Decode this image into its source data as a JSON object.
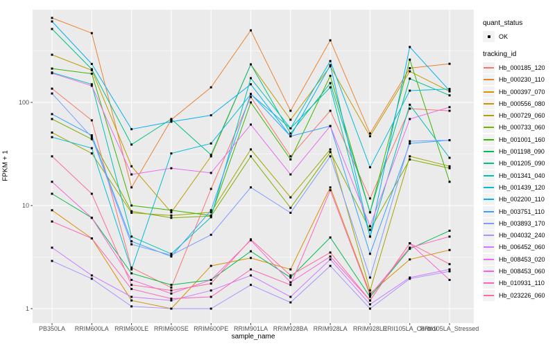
{
  "page": {
    "background": "#FFFFFF"
  },
  "panel": {
    "background": "#EBEBEB",
    "gridline_color": "#FFFFFF",
    "tick_color": "#333333",
    "axis_text_color": "#4D4D4D",
    "marker_color": "#000000",
    "legend_key_background": "#F2F2F2"
  },
  "chart_data": {
    "type": "line",
    "title": "",
    "xlabel": "sample_name",
    "ylabel": "FPKM + 1",
    "x_categories": [
      "PB350LA",
      "RRIM600LA",
      "RRIM600LE",
      "RRIM600SE",
      "RRIM600PE",
      "RRIM901LA",
      "RRIM928BA",
      "RRIM928LA",
      "RRIM928LE",
      "RRII105LA_Control",
      "RRII105LA_Stressed"
    ],
    "y_axis": {
      "scale": "log10",
      "ticks": [
        1,
        10,
        100
      ],
      "tick_labels": [
        "1",
        "10",
        "100"
      ],
      "minor_ticks": [
        3.162,
        31.62,
        316.2
      ],
      "range": [
        0.72,
        794
      ]
    },
    "grid": true,
    "legend_position": "right",
    "legend": {
      "quant_status": {
        "title": "quant_status",
        "items": [
          {
            "label": "OK",
            "marker": "black-point"
          }
        ]
      },
      "tracking_id": {
        "title": "tracking_id"
      }
    },
    "series": [
      {
        "name": "Hb_000185_120",
        "color": "#F8766D",
        "values": [
          136,
          67,
          2.5,
          1.6,
          14.5,
          113,
          30,
          83,
          11.7,
          87,
          83
        ]
      },
      {
        "name": "Hb_000230_110",
        "color": "#EA8331",
        "values": [
          660,
          470,
          15,
          68,
          140,
          500,
          83,
          400,
          50,
          215,
          237
        ]
      },
      {
        "name": "Hb_000397_070",
        "color": "#D89000",
        "values": [
          9,
          4.8,
          1.2,
          1.0,
          2.6,
          3.1,
          2.4,
          15,
          1.4,
          3.0,
          3.7
        ]
      },
      {
        "name": "Hb_000556_080",
        "color": "#C09B00",
        "values": [
          290,
          205,
          24,
          8.6,
          30,
          234,
          68,
          224,
          47,
          200,
          128
        ]
      },
      {
        "name": "Hb_000729_060",
        "color": "#A3A500",
        "values": [
          51,
          32,
          8.5,
          8.0,
          8.6,
          35,
          12,
          35,
          1.5,
          30,
          24
        ]
      },
      {
        "name": "Hb_000733_060",
        "color": "#7CAE00",
        "values": [
          69,
          44,
          8.8,
          7.6,
          7.9,
          30,
          9.5,
          33,
          5.8,
          28,
          23
        ]
      },
      {
        "name": "Hb_001001_160",
        "color": "#39B600",
        "values": [
          213,
          190,
          10,
          9.0,
          8.0,
          100,
          28,
          181,
          8.6,
          260,
          17
        ]
      },
      {
        "name": "Hb_001198_090",
        "color": "#00BB4E",
        "values": [
          13,
          7.6,
          2.2,
          1.7,
          1.9,
          3.6,
          2.0,
          4.9,
          1.3,
          3.8,
          5.7
        ]
      },
      {
        "name": "Hb_001205_090",
        "color": "#00C087",
        "values": [
          515,
          210,
          39,
          69,
          31,
          234,
          50,
          154,
          8.6,
          170,
          117
        ]
      },
      {
        "name": "Hb_001341_040",
        "color": "#00C0B2",
        "values": [
          195,
          150,
          5.0,
          3.4,
          7.7,
          172,
          56,
          140,
          5.0,
          95,
          29
        ]
      },
      {
        "name": "Hb_001439_120",
        "color": "#00BCD8",
        "values": [
          46,
          36,
          2.4,
          32,
          40,
          120,
          56,
          252,
          23.5,
          130,
          135
        ]
      },
      {
        "name": "Hb_002200_110",
        "color": "#00B0F6",
        "values": [
          610,
          236,
          55,
          65,
          75,
          150,
          47,
          230,
          5.0,
          345,
          130
        ]
      },
      {
        "name": "Hb_003751_110",
        "color": "#35A2FF",
        "values": [
          77,
          48,
          4.5,
          3.2,
          9.0,
          121,
          47,
          59,
          3.4,
          40,
          43
        ]
      },
      {
        "name": "Hb_003893_170",
        "color": "#7C9DFF",
        "values": [
          122,
          46,
          4.2,
          3.3,
          5.2,
          15,
          8.5,
          30,
          2.0,
          42,
          43
        ]
      },
      {
        "name": "Hb_004032_240",
        "color": "#A992FF",
        "values": [
          2.9,
          1.95,
          1.05,
          1.0,
          1.0,
          1.7,
          1.15,
          2.6,
          1.0,
          1.95,
          2.3
        ]
      },
      {
        "name": "Hb_006452_060",
        "color": "#CD79FF",
        "values": [
          3.9,
          2.1,
          1.3,
          1.2,
          1.5,
          2.1,
          1.3,
          3.0,
          1.1,
          2.0,
          2.4
        ]
      },
      {
        "name": "Hb_008453_020",
        "color": "#E76BF3",
        "values": [
          192,
          145,
          20,
          23,
          20.7,
          61,
          20,
          59,
          6.3,
          69,
          90
        ]
      },
      {
        "name": "Hb_008453_060",
        "color": "#FA62DB",
        "values": [
          17,
          7.6,
          1.9,
          1.4,
          1.9,
          4.6,
          1.8,
          3.2,
          1.2,
          4.3,
          1.9
        ]
      },
      {
        "name": "Hb_010931_110",
        "color": "#FF62BC",
        "values": [
          7.0,
          4.8,
          1.55,
          1.25,
          1.3,
          2.4,
          1.7,
          14.1,
          1.35,
          3.9,
          5.0
        ]
      },
      {
        "name": "Hb_023226_060",
        "color": "#FF6A98",
        "values": [
          30,
          13,
          1.7,
          1.5,
          1.75,
          4.7,
          2.1,
          3.5,
          1.2,
          4.3,
          2.7
        ]
      }
    ]
  }
}
